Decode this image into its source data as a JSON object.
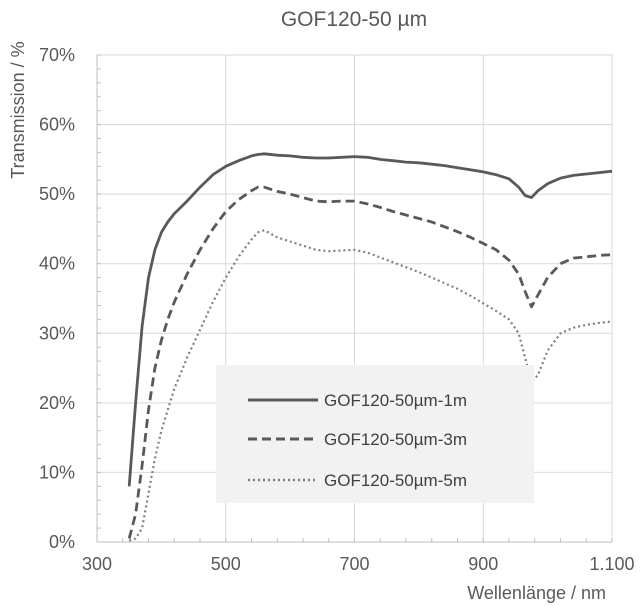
{
  "chart_data": {
    "type": "line",
    "title": "GOF120-50 µm",
    "xlabel": "Wellenlänge / nm",
    "ylabel": "Transmission / %",
    "xlim": [
      300,
      1100
    ],
    "ylim": [
      0,
      70
    ],
    "x_ticks": [
      300,
      500,
      700,
      900,
      1100
    ],
    "x_tick_labels": [
      "300",
      "500",
      "700",
      "900",
      "1.100"
    ],
    "y_ticks": [
      0,
      10,
      20,
      30,
      40,
      50,
      60,
      70
    ],
    "y_tick_labels": [
      "0%",
      "10%",
      "20%",
      "30%",
      "40%",
      "50%",
      "60%",
      "70%"
    ],
    "grid": "vertical and horizontal major gridlines",
    "legend_position": "lower-center",
    "series": [
      {
        "name": "GOF120-50µm-1m",
        "color": "#595959",
        "style": "solid",
        "x": [
          350,
          360,
          370,
          380,
          390,
          400,
          410,
          420,
          440,
          460,
          480,
          500,
          520,
          540,
          550,
          560,
          580,
          600,
          620,
          640,
          660,
          680,
          700,
          720,
          740,
          760,
          780,
          800,
          820,
          840,
          860,
          880,
          900,
          920,
          940,
          955,
          965,
          975,
          985,
          1000,
          1020,
          1040,
          1060,
          1080,
          1100
        ],
        "values": [
          8,
          20,
          31,
          38,
          42,
          44.5,
          46,
          47.2,
          49,
          51,
          52.8,
          54,
          54.8,
          55.5,
          55.7,
          55.8,
          55.6,
          55.5,
          55.3,
          55.2,
          55.2,
          55.3,
          55.4,
          55.3,
          55.0,
          54.8,
          54.6,
          54.5,
          54.3,
          54.1,
          53.8,
          53.5,
          53.2,
          52.8,
          52.2,
          51.0,
          49.8,
          49.5,
          50.5,
          51.5,
          52.3,
          52.7,
          52.9,
          53.1,
          53.3
        ]
      },
      {
        "name": "GOF120-50µm-3m",
        "color": "#595959",
        "style": "dashed",
        "x": [
          350,
          360,
          370,
          380,
          390,
          400,
          410,
          420,
          440,
          460,
          480,
          500,
          520,
          540,
          550,
          560,
          580,
          600,
          620,
          640,
          660,
          680,
          700,
          720,
          740,
          760,
          780,
          800,
          820,
          840,
          860,
          880,
          900,
          920,
          940,
          955,
          965,
          975,
          985,
          1000,
          1020,
          1040,
          1060,
          1080,
          1100
        ],
        "values": [
          0.5,
          4,
          11,
          19,
          25,
          29,
          32,
          34.5,
          38.5,
          42,
          45,
          47.5,
          49.2,
          50.5,
          51,
          51,
          50.4,
          50,
          49.5,
          49,
          48.9,
          49,
          49,
          48.6,
          48.1,
          47.5,
          47.0,
          46.5,
          46.0,
          45.3,
          44.6,
          43.8,
          42.9,
          42.0,
          40.5,
          38.5,
          36.0,
          33.8,
          35.5,
          38.0,
          40.0,
          40.8,
          41.0,
          41.2,
          41.3
        ]
      },
      {
        "name": "GOF120-50µm-5m",
        "color": "#7f7f7f",
        "style": "dotted",
        "x": [
          350,
          360,
          370,
          380,
          390,
          400,
          410,
          420,
          440,
          460,
          480,
          500,
          520,
          540,
          550,
          560,
          580,
          600,
          620,
          640,
          660,
          680,
          700,
          720,
          740,
          760,
          780,
          800,
          820,
          840,
          860,
          880,
          900,
          920,
          940,
          955,
          965,
          975,
          985,
          1000,
          1020,
          1040,
          1060,
          1080,
          1100
        ],
        "values": [
          0.2,
          0.5,
          2,
          7,
          12,
          16,
          19,
          22,
          26.5,
          30.5,
          34.5,
          38,
          41,
          43.5,
          44.5,
          44.8,
          43.8,
          43.2,
          42.6,
          42.0,
          41.8,
          41.9,
          42,
          41.6,
          40.9,
          40.2,
          39.5,
          38.8,
          38.0,
          37.2,
          36.4,
          35.4,
          34.3,
          33.2,
          32.0,
          30.0,
          26.5,
          23.0,
          24.0,
          27.5,
          30.0,
          30.8,
          31.2,
          31.5,
          31.7
        ]
      }
    ]
  }
}
